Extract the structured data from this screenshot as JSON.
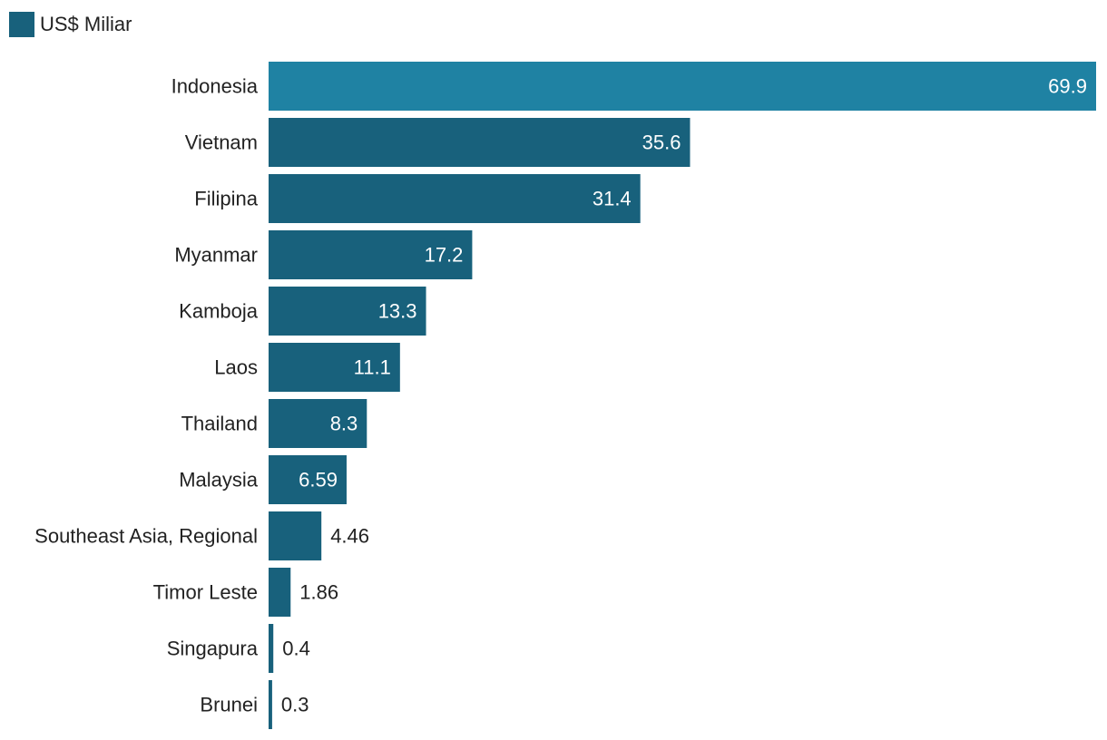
{
  "chart_data": {
    "type": "bar",
    "orientation": "horizontal",
    "title": "",
    "xlabel": "",
    "ylabel": "",
    "legend": {
      "label": "US$ Miliar",
      "placement": "top-left"
    },
    "series": [
      {
        "name": "US$ Miliar",
        "values": [
          69.9,
          35.6,
          31.4,
          17.2,
          13.3,
          11.1,
          8.3,
          6.59,
          4.46,
          1.86,
          0.4,
          0.3
        ]
      }
    ],
    "categories": [
      "Indonesia",
      "Vietnam",
      "Filipina",
      "Myanmar",
      "Kamboja",
      "Laos",
      "Thailand",
      "Malaysia",
      "Southeast Asia, Regional",
      "Timor Leste",
      "Singapura",
      "Brunei"
    ],
    "value_labels": [
      "69.9",
      "35.6",
      "31.4",
      "17.2",
      "13.3",
      "11.1",
      "8.3",
      "6.59",
      "4.46",
      "1.86",
      "0.4",
      "0.3"
    ],
    "highlight_category": "Indonesia",
    "xlim": [
      0,
      69.9
    ],
    "grid": false,
    "colors": {
      "bar": "#18617c",
      "highlight": "#1f82a3",
      "label_inside": "#ffffff",
      "label_outside": "#222222",
      "category_text": "#222222"
    }
  }
}
